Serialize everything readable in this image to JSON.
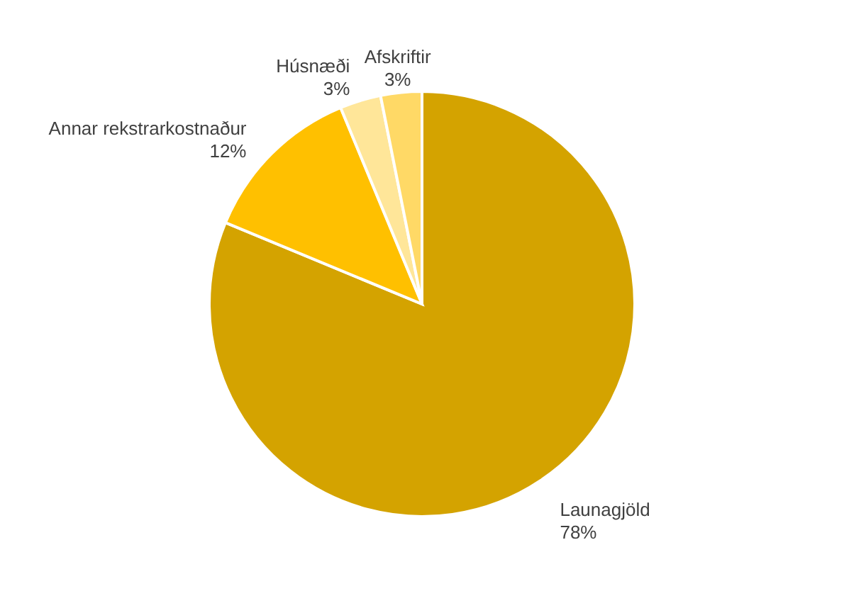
{
  "chart_data": {
    "type": "pie",
    "categories": [
      "Launagjöld",
      "Annar rekstrarkostnaður",
      "Húsnæði",
      "Afskriftir"
    ],
    "values": [
      78,
      12,
      3,
      3
    ],
    "colors": [
      "#d4a300",
      "#ffc000",
      "#ffe699",
      "#ffd966"
    ],
    "value_labels": [
      "78%",
      "12%",
      "3%",
      "3%"
    ]
  }
}
